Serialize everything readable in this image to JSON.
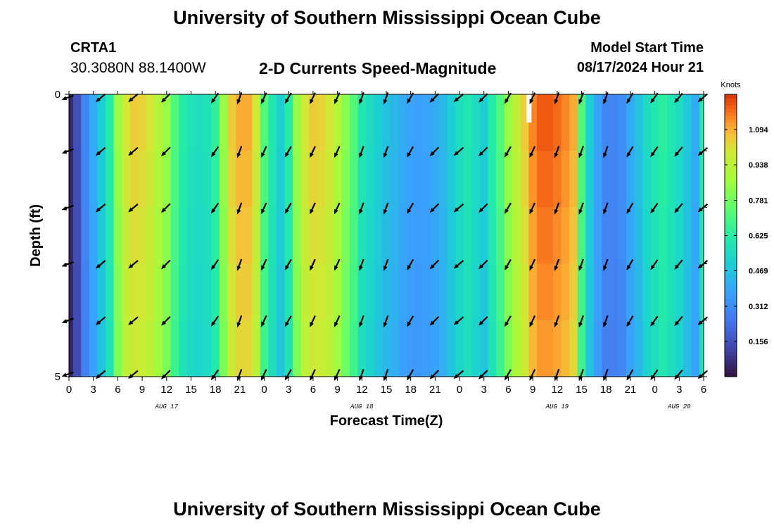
{
  "header": {
    "title": "University of Southern Mississippi Ocean Cube",
    "station_id": "CRTA1",
    "coordinates": "30.3080N  88.1400W",
    "model_start_label": "Model Start Time",
    "model_start_value": "08/17/2024 Hour 21"
  },
  "footer": {
    "title": "University of Southern Mississippi Ocean Cube"
  },
  "chart_data": {
    "type": "heatmap",
    "title": "2-D Currents Speed-Magnitude",
    "xlabel": "Forecast Time(Z)",
    "ylabel": "Depth (ft)",
    "colorbar_label": "Knots",
    "colorbar_ticks": [
      "1.094",
      "0.938",
      "0.781",
      "0.625",
      "0.469",
      "0.312",
      "0.156"
    ],
    "colorbar_tick_values": [
      1.094,
      0.938,
      0.781,
      0.625,
      0.469,
      0.312,
      0.156
    ],
    "color_range": [
      0.0,
      1.25
    ],
    "x_range_hours": [
      0,
      78
    ],
    "x_tick_labels": [
      "0",
      "3",
      "6",
      "9",
      "12",
      "15",
      "18",
      "21",
      "0",
      "3",
      "6",
      "9",
      "12",
      "15",
      "18",
      "21",
      "0",
      "3",
      "6",
      "9",
      "12",
      "15",
      "18",
      "21",
      "0",
      "3",
      "6"
    ],
    "date_labels": [
      {
        "label": "AUG 17",
        "hour": 12
      },
      {
        "label": "AUG 18",
        "hour": 36
      },
      {
        "label": "AUG 19",
        "hour": 60
      },
      {
        "label": "AUG 20",
        "hour": 75
      }
    ],
    "y_range_ft": [
      0,
      5
    ],
    "y_tick_labels": [
      "0",
      "5"
    ],
    "depth_levels": 5,
    "time_step_hours": 1,
    "speed_by_hour": [
      0.05,
      0.15,
      0.3,
      0.4,
      0.5,
      0.62,
      0.85,
      1.0,
      1.05,
      1.04,
      1.0,
      0.92,
      0.85,
      0.72,
      0.62,
      0.58,
      0.56,
      0.58,
      0.65,
      0.85,
      1.05,
      1.1,
      1.1,
      1.0,
      0.72,
      0.6,
      0.5,
      0.62,
      0.85,
      1.0,
      1.05,
      1.04,
      1.0,
      0.92,
      0.82,
      0.72,
      0.6,
      0.55,
      0.5,
      0.46,
      0.44,
      0.4,
      0.38,
      0.37,
      0.38,
      0.4,
      0.44,
      0.5,
      0.56,
      0.6,
      0.55,
      0.5,
      0.62,
      0.72,
      0.85,
      0.95,
      1.05,
      1.15,
      1.2,
      1.2,
      1.18,
      1.15,
      1.1,
      0.72,
      0.5,
      0.38,
      0.3,
      0.3,
      0.32,
      0.4,
      0.46,
      0.55,
      0.6,
      0.64,
      0.6,
      0.55,
      0.48,
      0.4,
      0.62
    ],
    "missing_data": {
      "hour": 56.5,
      "depth_from_ft": 0,
      "depth_to_ft": 0.5
    },
    "vector_hours": [
      0,
      4,
      8,
      12,
      18,
      21,
      24,
      27,
      30,
      33,
      36,
      39,
      42,
      45,
      48,
      51,
      54,
      57,
      60,
      63,
      66,
      69,
      72,
      75,
      78
    ],
    "vector_directions_deg": [
      160,
      140,
      140,
      135,
      125,
      110,
      115,
      120,
      115,
      115,
      110,
      110,
      120,
      135,
      140,
      135,
      120,
      115,
      110,
      110,
      110,
      120,
      125,
      130,
      140
    ]
  }
}
